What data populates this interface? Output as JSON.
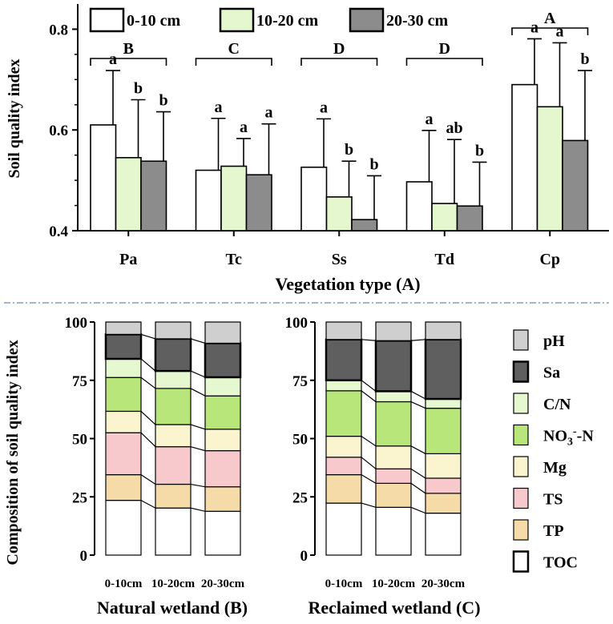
{
  "chart_data": [
    {
      "type": "bar",
      "panel": "A",
      "ylabel": "Soil quality index",
      "xlabel": "Vegetation type (A)",
      "ylim": [
        0.4,
        0.85
      ],
      "yticks": [
        "0.4",
        "0.6",
        "0.8"
      ],
      "ytick_values": [
        0.4,
        0.6,
        0.8
      ],
      "categories": [
        "Pa",
        "Tc",
        "Ss",
        "Td",
        "Cp"
      ],
      "legend": [
        "0-10 cm",
        "10-20 cm",
        "20-30 cm"
      ],
      "colors": [
        "#ffffff",
        "#e4f7cf",
        "#8c8c8c"
      ],
      "series": [
        {
          "name": "0-10 cm",
          "values": [
            0.61,
            0.52,
            0.526,
            0.497,
            0.69
          ],
          "errors": [
            0.108,
            0.103,
            0.096,
            0.102,
            0.091
          ],
          "letters": [
            "a",
            "a",
            "a",
            "a",
            "a"
          ]
        },
        {
          "name": "10-20 cm",
          "values": [
            0.545,
            0.528,
            0.467,
            0.454,
            0.646
          ],
          "errors": [
            0.115,
            0.055,
            0.071,
            0.127,
            0.127
          ],
          "letters": [
            "b",
            "a",
            "b",
            "ab",
            "a"
          ]
        },
        {
          "name": "20-30 cm",
          "values": [
            0.538,
            0.511,
            0.422,
            0.449,
            0.579
          ],
          "errors": [
            0.098,
            0.101,
            0.087,
            0.087,
            0.139
          ],
          "letters": [
            "b",
            "a",
            "b",
            "b",
            "b"
          ]
        }
      ],
      "group_letters": [
        "B",
        "C",
        "D",
        "D",
        "A"
      ]
    },
    {
      "type": "stacked_bar",
      "panel": "B",
      "title": "Natural wetland (B)",
      "ylabel": "Composition of soil quality index",
      "ylim": [
        0,
        100
      ],
      "yticks": [
        "0",
        "25",
        "50",
        "75",
        "100"
      ],
      "ytick_values": [
        0,
        25,
        50,
        75,
        100
      ],
      "categories": [
        "0-10cm",
        "10-20cm",
        "20-30cm"
      ],
      "series": [
        {
          "name": "TOC",
          "values": [
            23.5,
            20.2,
            18.8
          ]
        },
        {
          "name": "TP",
          "values": [
            11.0,
            10.2,
            10.5
          ]
        },
        {
          "name": "TS",
          "values": [
            18.0,
            16.1,
            15.5
          ]
        },
        {
          "name": "Mg",
          "values": [
            9.2,
            9.5,
            9.2
          ]
        },
        {
          "name": "NO3-N",
          "values": [
            14.5,
            15.5,
            14.3
          ]
        },
        {
          "name": "C/N",
          "values": [
            8.0,
            7.5,
            8.0
          ]
        },
        {
          "name": "Sa",
          "values": [
            10.5,
            13.8,
            14.6
          ]
        },
        {
          "name": "pH",
          "values": [
            5.3,
            7.2,
            9.1
          ]
        }
      ]
    },
    {
      "type": "stacked_bar",
      "panel": "C",
      "title": "Reclaimed wetland (C)",
      "ylim": [
        0,
        100
      ],
      "yticks": [
        "0",
        "25",
        "50",
        "75",
        "100"
      ],
      "ytick_values": [
        0,
        25,
        50,
        75,
        100
      ],
      "categories": [
        "0-10cm",
        "10-20cm",
        "20-30cm"
      ],
      "series": [
        {
          "name": "TOC",
          "values": [
            22.3,
            20.5,
            18.0
          ]
        },
        {
          "name": "TP",
          "values": [
            12.2,
            10.3,
            8.5
          ]
        },
        {
          "name": "TS",
          "values": [
            7.5,
            6.2,
            6.5
          ]
        },
        {
          "name": "Mg",
          "values": [
            9.0,
            9.8,
            10.5
          ]
        },
        {
          "name": "NO3-N",
          "values": [
            19.5,
            19.0,
            19.5
          ]
        },
        {
          "name": "C/N",
          "values": [
            4.5,
            4.5,
            4.0
          ]
        },
        {
          "name": "Sa",
          "values": [
            17.5,
            21.7,
            25.5
          ]
        },
        {
          "name": "pH",
          "values": [
            7.5,
            8.0,
            7.5
          ]
        }
      ]
    }
  ],
  "legend2": {
    "order": [
      "pH",
      "Sa",
      "C/N",
      "NO3-N",
      "Mg",
      "TS",
      "TP",
      "TOC"
    ],
    "labels": {
      "pH": "pH",
      "Sa": "Sa",
      "C/N": "C/N",
      "NO3-N": "NO3",
      "Mg": "Mg",
      "TS": "TS",
      "TP": "TP",
      "TOC": "TOC"
    },
    "no3_sup": "-",
    "no3_suffix": "-N"
  },
  "colors": {
    "TOC": "#ffffff",
    "TP": "#f4dba8",
    "TS": "#f8c9cc",
    "Mg": "#faf4cf",
    "NO3-N": "#b8e67a",
    "C/N": "#e6f8cf",
    "Sa": "#5f5f5f",
    "pH": "#cfcfcf",
    "divider": "#7d9fc8"
  }
}
